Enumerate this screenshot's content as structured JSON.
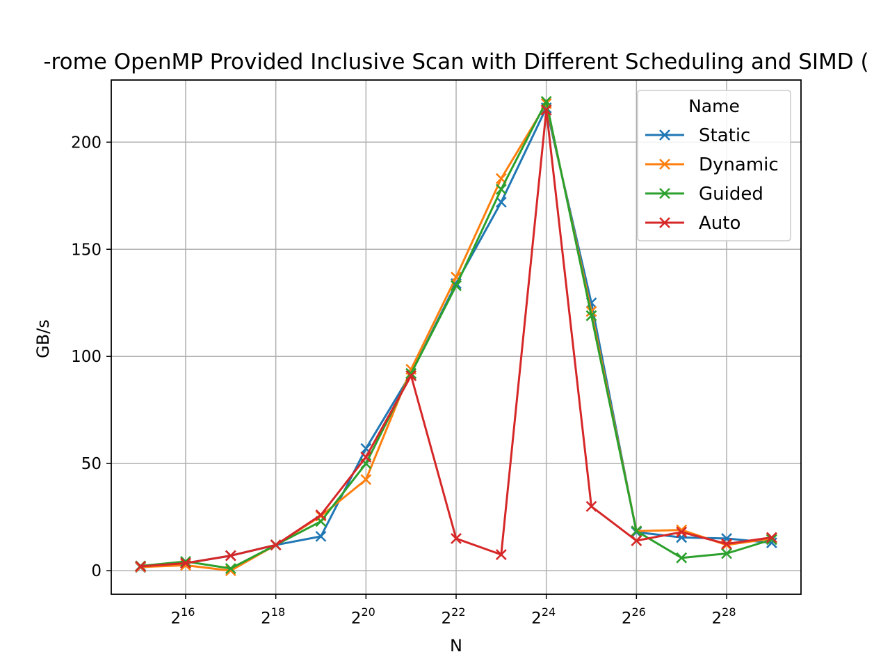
{
  "chart_data": {
    "type": "line",
    "title": "-rome OpenMP Provided Inclusive Scan with Different Scheduling and SIMD (",
    "xlabel": "N",
    "ylabel": "GB/s",
    "x_scale": "log2",
    "x_exponents": [
      15,
      16,
      17,
      18,
      19,
      20,
      21,
      22,
      23,
      24,
      25,
      26,
      27,
      28,
      29
    ],
    "xlim_exponent": [
      14.35,
      29.65
    ],
    "ylim": [
      -11,
      229
    ],
    "x_ticks": [
      {
        "base": "2",
        "exp": "16",
        "value": 16
      },
      {
        "base": "2",
        "exp": "18",
        "value": 18
      },
      {
        "base": "2",
        "exp": "20",
        "value": 20
      },
      {
        "base": "2",
        "exp": "22",
        "value": 22
      },
      {
        "base": "2",
        "exp": "24",
        "value": 24
      },
      {
        "base": "2",
        "exp": "26",
        "value": 26
      },
      {
        "base": "2",
        "exp": "28",
        "value": 28
      }
    ],
    "y_ticks": [
      {
        "label": "0",
        "value": 0
      },
      {
        "label": "50",
        "value": 50
      },
      {
        "label": "100",
        "value": 100
      },
      {
        "label": "150",
        "value": 150
      },
      {
        "label": "200",
        "value": 200
      }
    ],
    "grid": true,
    "legend": {
      "title": "Name",
      "position": "top-right"
    },
    "marker": "x",
    "series": [
      {
        "name": "Static",
        "color": "#1f77b4",
        "values": [
          1.5,
          3.5,
          7.0,
          12.0,
          16.0,
          57.0,
          92.0,
          134.0,
          172.0,
          216.0,
          125.0,
          18.0,
          15.5,
          15.0,
          13.0
        ]
      },
      {
        "name": "Dynamic",
        "color": "#ff7f0e",
        "values": [
          1.7,
          2.5,
          0.0,
          12.0,
          25.5,
          42.5,
          94.0,
          137.0,
          183.0,
          218.0,
          121.0,
          18.5,
          19.0,
          12.0,
          15.0
        ]
      },
      {
        "name": "Guided",
        "color": "#2ca02c",
        "values": [
          2.2,
          4.3,
          1.0,
          12.0,
          23.0,
          50.0,
          92.0,
          133.0,
          178.0,
          219.0,
          119.0,
          18.5,
          6.0,
          8.0,
          14.5
        ]
      },
      {
        "name": "Auto",
        "color": "#d62728",
        "values": [
          2.0,
          3.5,
          7.0,
          12.0,
          26.0,
          53.0,
          91.0,
          15.0,
          7.5,
          215.0,
          30.0,
          14.0,
          18.0,
          12.5,
          15.5
        ]
      }
    ]
  }
}
